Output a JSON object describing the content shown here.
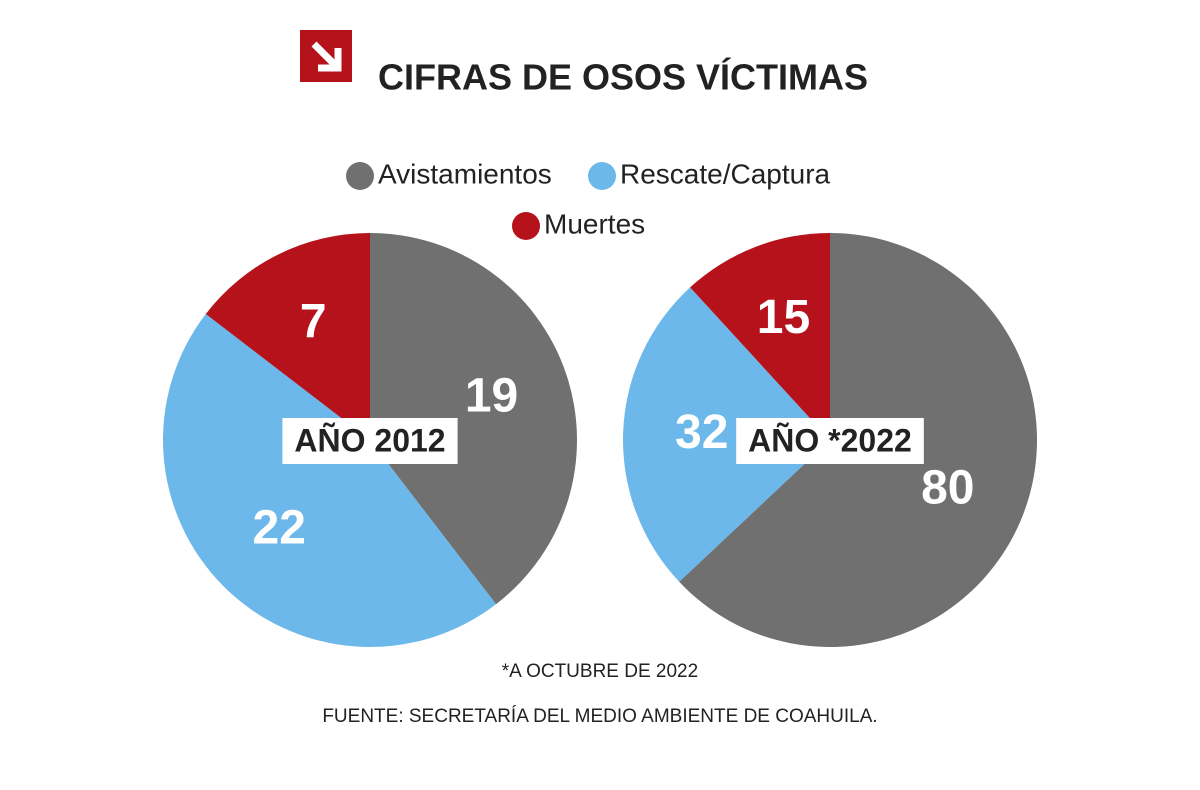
{
  "header": {
    "title": "CIFRAS DE OSOS VÍCTIMAS"
  },
  "chart_data": [
    {
      "type": "pie",
      "subtitle": "AÑO 2012",
      "categories": [
        "Avistamientos",
        "Rescate/Captura",
        "Muertes"
      ],
      "values": [
        19,
        22,
        7
      ],
      "colors": [
        "#707070",
        "#6cb8ea",
        "#b5121b"
      ]
    },
    {
      "type": "pie",
      "subtitle": "AÑO *2022",
      "categories": [
        "Avistamientos",
        "Rescate/Captura",
        "Muertes"
      ],
      "values": [
        80,
        32,
        15
      ],
      "colors": [
        "#707070",
        "#6cb8ea",
        "#b5121b"
      ]
    }
  ],
  "footer": {
    "note": "*A OCTUBRE DE 2022",
    "source": "FUENTE: SECRETARÍA DEL MEDIO AMBIENTE DE COAHUILA."
  }
}
